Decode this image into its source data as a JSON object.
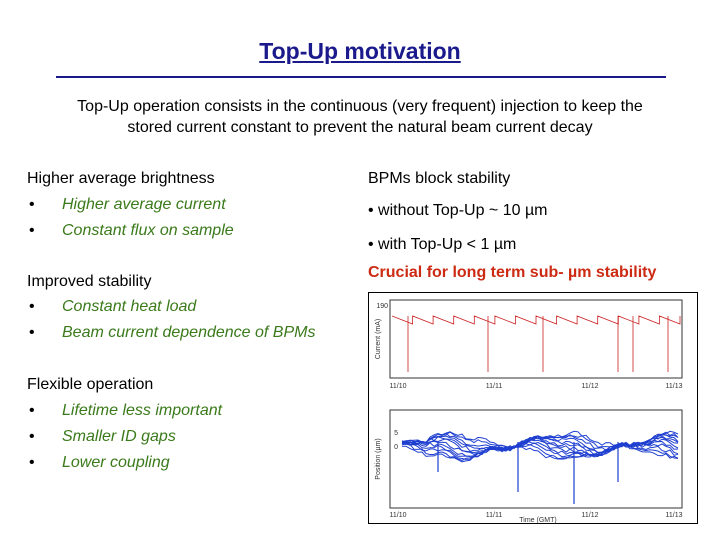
{
  "slide": {
    "title": "Top-Up motivation",
    "intro_line1": "Top-Up operation consists in the continuous (very frequent) injection to keep the",
    "intro_line2": "stored current constant to prevent the natural beam current decay"
  },
  "left": {
    "sections": [
      {
        "heading": "Higher average brightness",
        "bullets": [
          "Higher average current",
          "Constant flux on sample"
        ]
      },
      {
        "heading": "Improved stability",
        "bullets": [
          "Constant heat load",
          "Beam current dependence of BPMs"
        ]
      },
      {
        "heading": "Flexible operation",
        "bullets": [
          "Lifetime less important",
          "Smaller ID gaps",
          "Lower coupling"
        ]
      }
    ],
    "bullet_symbol": "•"
  },
  "right": {
    "heading": "BPMs block stability",
    "without": "• without Top-Up ~ 10 µm",
    "with": "• with Top-Up < 1 µm",
    "crucial": "Crucial for long term sub- µm stability"
  },
  "figure": {
    "top_ylabel": "Current (mA)",
    "top_yticks": [
      "190",
      "",
      "",
      "",
      "",
      ""
    ],
    "top_xticks": [
      "11/10",
      "11/11",
      "11/12",
      "11/13"
    ],
    "bottom_ylabel": "Position (µm)",
    "bottom_yticks": [
      "5",
      "0",
      "",
      "",
      "",
      "",
      ""
    ],
    "bottom_xticks": [
      "11/10",
      "11/11",
      "11/12",
      "11/13"
    ],
    "bottom_xlabel": "Time (GMT)",
    "top_color": "#cc2222",
    "bottom_color": "#1f3fd0"
  }
}
